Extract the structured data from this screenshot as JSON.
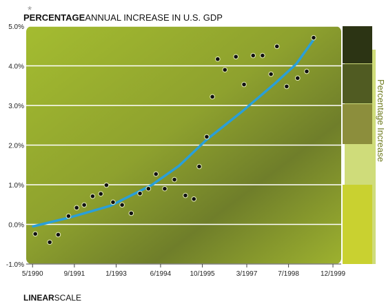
{
  "chart_data": {
    "type": "scatter",
    "title_emphasis": "PERCENTAGE",
    "title": "ANNUAL INCREASE IN U.S. GDP",
    "legend_title": "Percentage Increase",
    "scale_emphasis": "LINEAR",
    "scale_label": "SCALE",
    "xlim": [
      1990.13,
      2000.18
    ],
    "ylim": [
      -1.0,
      5.0
    ],
    "xticks": [
      {
        "value": 1990.333,
        "label": "5/1990"
      },
      {
        "value": 1991.667,
        "label": "9/1991"
      },
      {
        "value": 1993.0,
        "label": "1/1993"
      },
      {
        "value": 1994.417,
        "label": "6/1994"
      },
      {
        "value": 1995.75,
        "label": "10/1995"
      },
      {
        "value": 1997.167,
        "label": "3/1997"
      },
      {
        "value": 1998.5,
        "label": "7/1998"
      },
      {
        "value": 1999.917,
        "label": "12/1999"
      }
    ],
    "yticks": [
      {
        "value": -1.0,
        "label": "-1.0%"
      },
      {
        "value": 0.0,
        "label": "0.0%"
      },
      {
        "value": 1.0,
        "label": "1.0%"
      },
      {
        "value": 2.0,
        "label": "2.0%"
      },
      {
        "value": 3.0,
        "label": "3.0%"
      },
      {
        "value": 4.0,
        "label": "4.0%"
      },
      {
        "value": 5.0,
        "label": "5.0%"
      }
    ],
    "grid": true,
    "series": [
      {
        "color": "#111111",
        "x": [
          1990.42,
          1990.88,
          1991.15,
          1991.48,
          1991.74,
          1991.98,
          1992.25,
          1992.51,
          1992.69,
          1992.9,
          1993.19,
          1993.48,
          1993.76,
          1994.03,
          1994.27,
          1994.55,
          1994.86,
          1995.21,
          1995.48,
          1995.65,
          1995.89,
          1996.07,
          1996.24,
          1996.47,
          1996.82,
          1997.08,
          1997.37,
          1997.67,
          1997.94,
          1998.13,
          1998.44,
          1998.79,
          1999.08,
          1999.3
        ],
        "values": [
          -0.24,
          -0.45,
          -0.26,
          0.21,
          0.42,
          0.49,
          0.71,
          0.77,
          0.99,
          0.56,
          0.49,
          0.28,
          0.78,
          0.9,
          1.27,
          0.9,
          1.13,
          0.73,
          0.64,
          1.46,
          2.21,
          3.22,
          4.17,
          3.9,
          4.23,
          3.53,
          4.26,
          4.26,
          3.79,
          4.49,
          3.48,
          3.69,
          3.86,
          4.71
        ]
      },
      {
        "type": "line",
        "color": "#2a9fd8",
        "x": [
          1990.35,
          1991.5,
          1992.82,
          1994.13,
          1995.01,
          1995.89,
          1996.99,
          1998.09,
          1998.75,
          1999.3
        ],
        "values": [
          -0.05,
          0.17,
          0.47,
          0.99,
          1.48,
          2.14,
          2.83,
          3.57,
          4.05,
          4.66
        ]
      }
    ]
  }
}
